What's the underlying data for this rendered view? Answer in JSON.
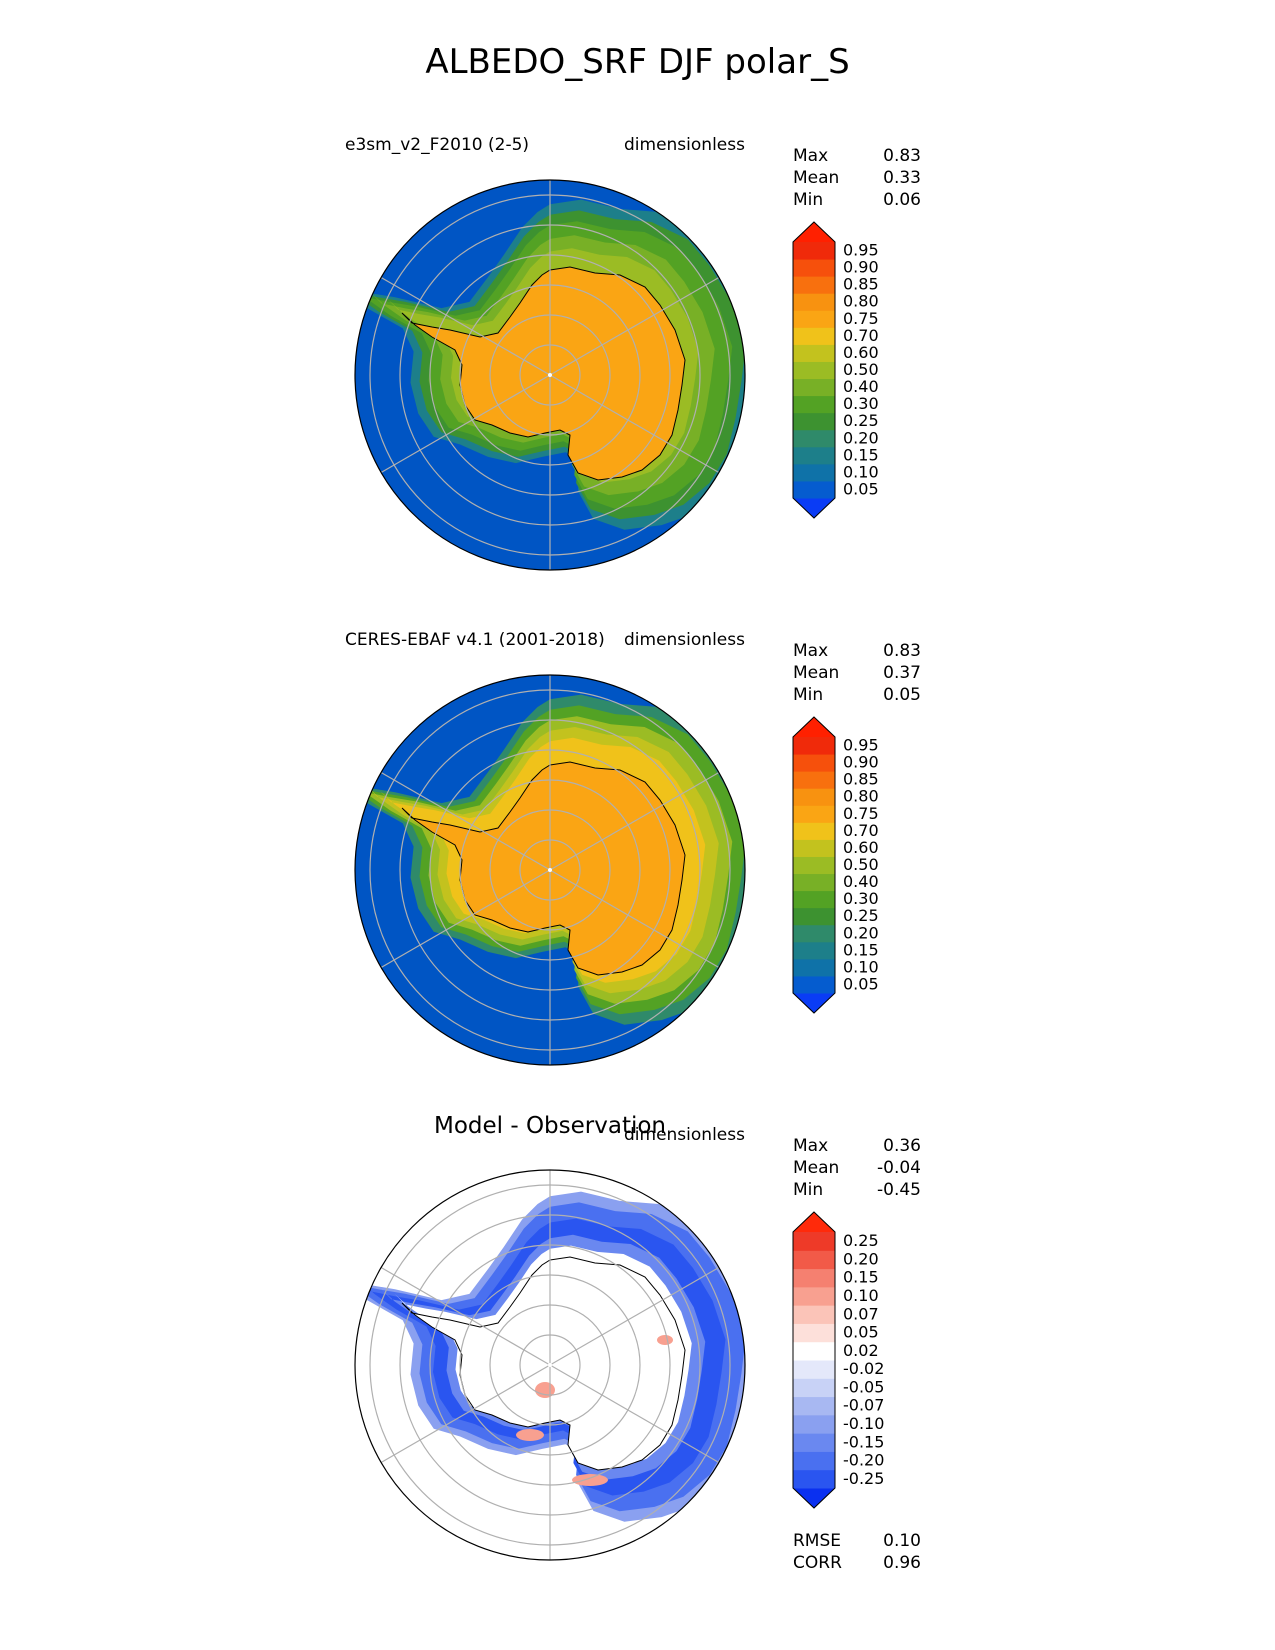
{
  "figure_title": "ALBEDO_SRF DJF polar_S",
  "colors": {
    "ocean": "#0055c4",
    "ice_sheet": "#faa514",
    "coastline": "#000000",
    "grid": "#b0b0b0"
  },
  "chart_data": [
    {
      "type": "heatmap",
      "projection": "south polar stereographic",
      "panel": "test",
      "title_left": "e3sm_v2_F2010 (2-5)",
      "title_right": "dimensionless",
      "stats": [
        {
          "label": "Max",
          "value": "0.83"
        },
        {
          "label": "Mean",
          "value": "0.33"
        },
        {
          "label": "Min",
          "value": "0.06"
        }
      ],
      "colorbar": {
        "levels": [
          "0.05",
          "0.10",
          "0.15",
          "0.20",
          "0.25",
          "0.30",
          "0.40",
          "0.50",
          "0.60",
          "0.70",
          "0.75",
          "0.80",
          "0.85",
          "0.90",
          "0.95"
        ],
        "colors": [
          "#0a3cf5",
          "#055ccf",
          "#0f72a8",
          "#1d7f8a",
          "#2f8a6a",
          "#3d9230",
          "#53a224",
          "#78b026",
          "#9bbc24",
          "#c3c21e",
          "#f0c21a",
          "#faa514",
          "#f89210",
          "#f8700e",
          "#f6500c",
          "#f02a0a",
          "#ff2000"
        ],
        "extend": "both"
      },
      "sea_ice_extent": "low"
    },
    {
      "type": "heatmap",
      "projection": "south polar stereographic",
      "panel": "reference",
      "title_left": "CERES-EBAF v4.1 (2001-2018)",
      "title_right": "dimensionless",
      "stats": [
        {
          "label": "Max",
          "value": "0.83"
        },
        {
          "label": "Mean",
          "value": "0.37"
        },
        {
          "label": "Min",
          "value": "0.05"
        }
      ],
      "colorbar": {
        "levels": [
          "0.05",
          "0.10",
          "0.15",
          "0.20",
          "0.25",
          "0.30",
          "0.40",
          "0.50",
          "0.60",
          "0.70",
          "0.75",
          "0.80",
          "0.85",
          "0.90",
          "0.95"
        ],
        "colors": [
          "#0a3cf5",
          "#055ccf",
          "#0f72a8",
          "#1d7f8a",
          "#2f8a6a",
          "#3d9230",
          "#53a224",
          "#78b026",
          "#9bbc24",
          "#c3c21e",
          "#f0c21a",
          "#faa514",
          "#f89210",
          "#f8700e",
          "#f6500c",
          "#f02a0a",
          "#ff2000"
        ],
        "extend": "both"
      },
      "sea_ice_extent": "high"
    },
    {
      "type": "heatmap",
      "projection": "south polar stereographic",
      "panel": "difference",
      "title_center": "Model - Observation",
      "title_right": "dimensionless",
      "stats": [
        {
          "label": "Max",
          "value": "0.36"
        },
        {
          "label": "Mean",
          "value": "-0.04"
        },
        {
          "label": "Min",
          "value": "-0.45"
        }
      ],
      "colorbar": {
        "levels": [
          "-0.25",
          "-0.20",
          "-0.15",
          "-0.10",
          "-0.07",
          "-0.05",
          "-0.02",
          "0.02",
          "0.05",
          "0.07",
          "0.10",
          "0.15",
          "0.20",
          "0.25"
        ],
        "colors": [
          "#0a30f0",
          "#2a55f0",
          "#4a70f0",
          "#6a88f0",
          "#8aa0f0",
          "#a8b8f2",
          "#c8d2f6",
          "#e4e8fa",
          "#ffffff",
          "#fde0da",
          "#fbc4b8",
          "#f8a090",
          "#f58070",
          "#f25a48",
          "#ee3a28",
          "#ff2a0a"
        ],
        "extend": "both"
      },
      "bottom_stats": [
        {
          "label": "RMSE",
          "value": "0.10"
        },
        {
          "label": "CORR",
          "value": "0.96"
        }
      ]
    }
  ]
}
